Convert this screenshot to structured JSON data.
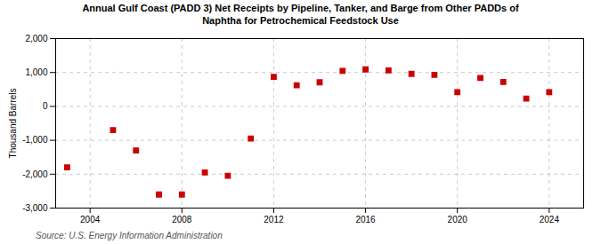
{
  "chart_data": {
    "type": "scatter",
    "title": "Annual Gulf Coast (PADD 3) Net Receipts by Pipeline, Tanker, and Barge from Other PADDs of\nNaphtha for Petrochemical Feedstock Use",
    "ylabel": "Thousand Barrels",
    "annotations": [
      "Source: U.S. Energy Information Administration"
    ],
    "x": [
      2003,
      2005,
      2006,
      2007,
      2008,
      2009,
      2010,
      2011,
      2012,
      2013,
      2014,
      2015,
      2016,
      2017,
      2018,
      2019,
      2020,
      2021,
      2022,
      2023,
      2024
    ],
    "values": [
      -1800,
      -700,
      -1300,
      -2600,
      -2600,
      -1950,
      -2050,
      -950,
      870,
      620,
      710,
      1050,
      1090,
      1060,
      960,
      930,
      420,
      840,
      720,
      230,
      420
    ],
    "color": "#cc0000",
    "marker": "square",
    "xlim": [
      2002.5,
      2025.5
    ],
    "xticks": [
      2004,
      2008,
      2012,
      2016,
      2020,
      2024
    ],
    "ylim": [
      -3000,
      2000
    ],
    "yticks": [
      {
        "value": -3000,
        "label": "-3,000"
      },
      {
        "value": -2000,
        "label": "-2,000"
      },
      {
        "value": -1000,
        "label": "-1,000"
      },
      0,
      {
        "value": 1000,
        "label": "1,000"
      },
      {
        "value": 2000,
        "label": "2,000"
      }
    ],
    "grid": true
  }
}
